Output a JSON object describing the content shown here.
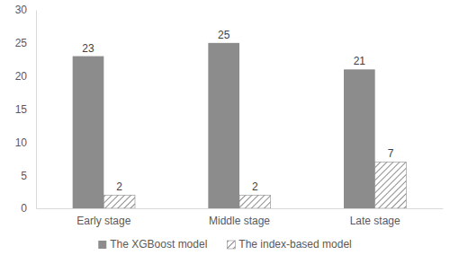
{
  "chart_data": {
    "type": "bar",
    "categories": [
      "Early stage",
      "Middle stage",
      "Late stage"
    ],
    "series": [
      {
        "name": "The XGBoost model",
        "color": "#8c8c8c",
        "values": [
          23,
          25,
          21
        ]
      },
      {
        "name": "The index-based model",
        "color": "#8c8c8c",
        "values": [
          2,
          2,
          7
        ]
      }
    ],
    "ylim": [
      0,
      30
    ],
    "yticks": [
      0,
      5,
      10,
      15,
      20,
      25,
      30
    ],
    "grid": false,
    "legend": "bottom",
    "data_labels": true
  }
}
